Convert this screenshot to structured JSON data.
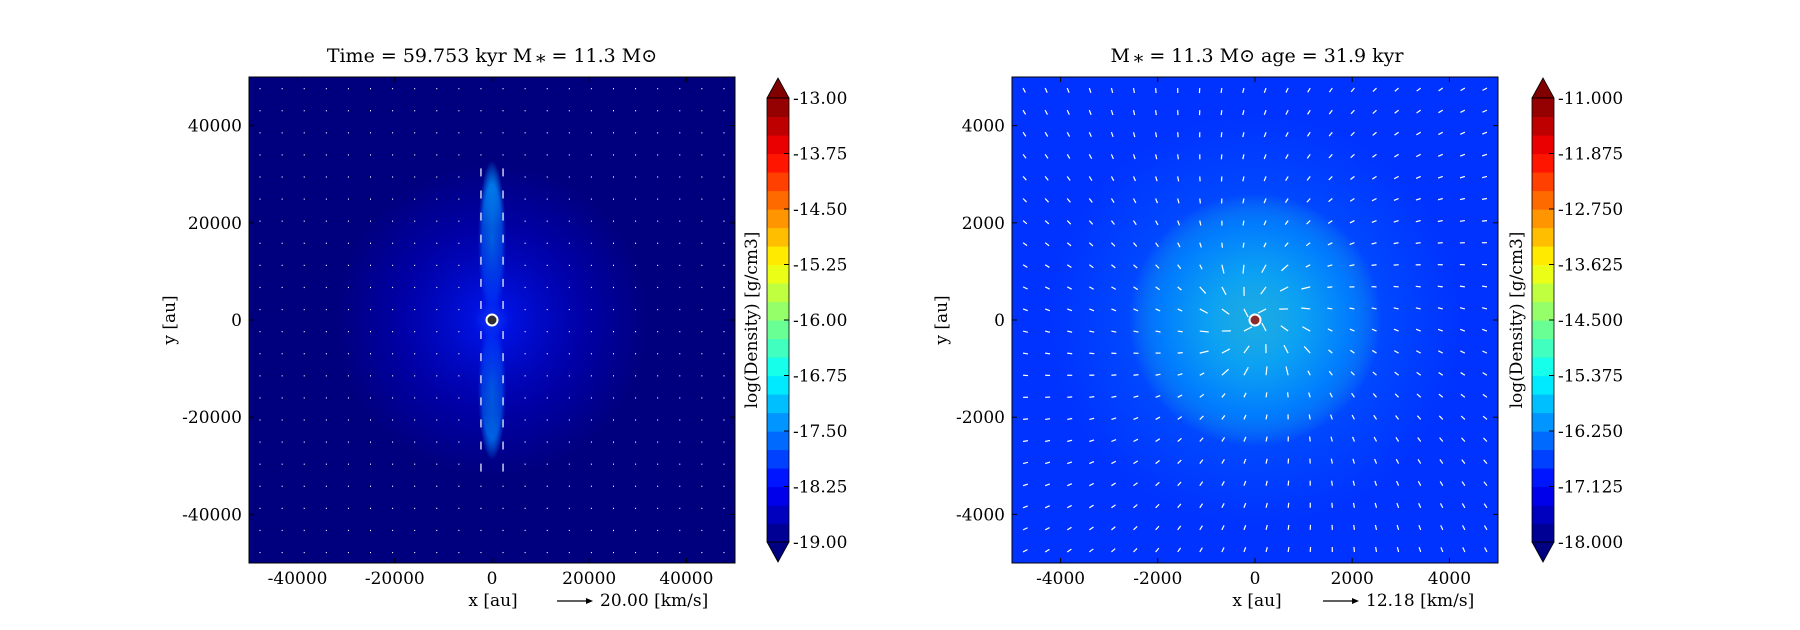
{
  "chart_data": [
    {
      "type": "heatmap",
      "title": "Time = 59.753 kyr    M ⁎ = 11.3 M⊙",
      "xlabel": "x [au]",
      "ylabel": "y [au]",
      "xlim": [
        -50000,
        50000
      ],
      "ylim": [
        -50000,
        50000
      ],
      "x_ticks": [
        -40000,
        -20000,
        0,
        20000,
        40000
      ],
      "y_ticks": [
        -40000,
        -20000,
        0,
        20000,
        40000
      ],
      "x_tick_labels": [
        "-40000",
        "-20000",
        "0",
        "20000",
        "40000"
      ],
      "y_tick_labels": [
        "-40000",
        "-20000",
        "0",
        "20000",
        "40000"
      ],
      "quiver_key": "20.00 [km/s]",
      "colorbar": {
        "label": "log(Density) [g/cm3]",
        "range": [
          -19.0,
          -13.0
        ],
        "ticks": [
          -19.0,
          -18.25,
          -17.5,
          -16.75,
          -16.0,
          -15.25,
          -14.5,
          -13.75,
          -13.0
        ],
        "tick_labels": [
          "-19.00",
          "-18.25",
          "-17.50",
          "-16.75",
          "-16.00",
          "-15.25",
          "-14.50",
          "-13.75",
          "-13.00"
        ],
        "extend": "both"
      },
      "colormap": "jet",
      "background_color": "#00007f",
      "star": {
        "x": 0,
        "y": 0
      },
      "features": [
        {
          "kind": "bipolar-outflow-lobes",
          "x": 0,
          "y_min": -28000,
          "y_max": 32000,
          "log_density_approx": -17.3
        },
        {
          "kind": "envelope-halo",
          "x": 0,
          "y": 0,
          "radius_au": 32000,
          "log_density_approx": -18.6
        }
      ]
    },
    {
      "type": "heatmap",
      "title": "M ⁎ = 11.3 M⊙            age = 31.9 kyr",
      "xlabel": "x [au]",
      "ylabel": "y [au]",
      "xlim": [
        -5000,
        5000
      ],
      "ylim": [
        -5000,
        5000
      ],
      "x_ticks": [
        -4000,
        -2000,
        0,
        2000,
        4000
      ],
      "y_ticks": [
        -4000,
        -2000,
        0,
        2000,
        4000
      ],
      "x_tick_labels": [
        "-4000",
        "-2000",
        "0",
        "2000",
        "4000"
      ],
      "y_tick_labels": [
        "-4000",
        "-2000",
        "0",
        "2000",
        "4000"
      ],
      "quiver_key": "12.18 [km/s]",
      "colorbar": {
        "label": "log(Density) [g/cm3]",
        "range": [
          -18.0,
          -11.0
        ],
        "ticks": [
          -18.0,
          -17.125,
          -16.25,
          -15.375,
          -14.5,
          -13.625,
          -12.75,
          -11.875,
          -11.0
        ],
        "tick_labels": [
          "-18.000",
          "-17.125",
          "-16.250",
          "-15.375",
          "-14.500",
          "-13.625",
          "-12.750",
          "-11.875",
          "-11.000"
        ],
        "extend": "both"
      },
      "colormap": "jet",
      "background_color": "#0033ff",
      "star": {
        "x": 0,
        "y": 0
      },
      "features": [
        {
          "kind": "central-disk",
          "x": 0,
          "y": 0,
          "radius_au": 2600,
          "log_density_approx": -15.0
        },
        {
          "kind": "envelope-halo",
          "x": 0,
          "y": 0,
          "radius_au": 4200,
          "log_density_approx": -16.5
        }
      ]
    }
  ]
}
